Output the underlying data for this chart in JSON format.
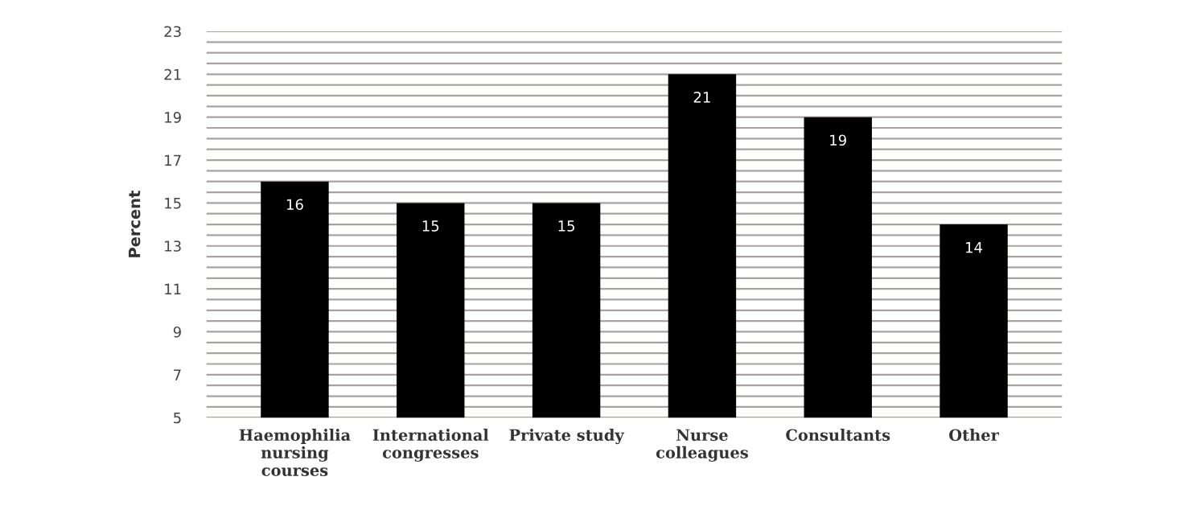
{
  "chart_data": {
    "type": "bar",
    "ylabel": "Percent",
    "categories": [
      "Haemophilia\nnursing\ncourses",
      "International\ncongresses",
      "Private study",
      "Nurse\ncolleagues",
      "Consultants",
      "Other"
    ],
    "values": [
      16,
      15,
      15,
      21,
      19,
      14
    ],
    "color": "#000000",
    "data_labels": true,
    "grid": "y",
    "ylim": [
      5,
      23
    ],
    "yticks": [
      5,
      {
        "value": 5.5,
        "label": null
      },
      {
        "value": 6,
        "label": null
      },
      {
        "value": 6.5,
        "label": null
      },
      7,
      {
        "value": 7.5,
        "label": null
      },
      {
        "value": 8,
        "label": null
      },
      {
        "value": 8.5,
        "label": null
      },
      9,
      {
        "value": 9.5,
        "label": null
      },
      {
        "value": 10,
        "label": null
      },
      {
        "value": 10.5,
        "label": null
      },
      11,
      {
        "value": 11.5,
        "label": null
      },
      {
        "value": 12,
        "label": null
      },
      {
        "value": 12.5,
        "label": null
      },
      13,
      {
        "value": 13.5,
        "label": null
      },
      {
        "value": 14,
        "label": null
      },
      {
        "value": 14.5,
        "label": null
      },
      15,
      {
        "value": 15.5,
        "label": null
      },
      {
        "value": 16,
        "label": null
      },
      {
        "value": 16.5,
        "label": null
      },
      17,
      {
        "value": 17.5,
        "label": null
      },
      {
        "value": 18,
        "label": null
      },
      {
        "value": 18.5,
        "label": null
      },
      19,
      {
        "value": 19.5,
        "label": null
      },
      {
        "value": 20,
        "label": null
      },
      {
        "value": 20.5,
        "label": null
      },
      21,
      {
        "value": 21.5,
        "label": null
      },
      {
        "value": 22,
        "label": null
      },
      {
        "value": 22.5,
        "label": null
      },
      23
    ]
  }
}
